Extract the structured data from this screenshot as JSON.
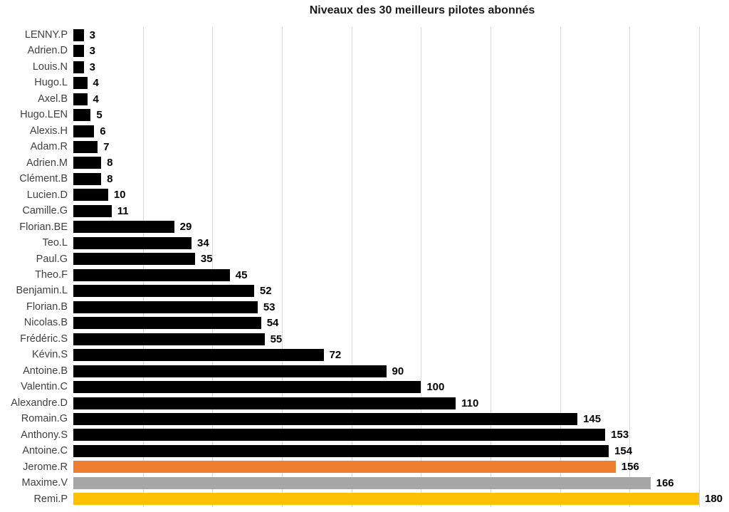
{
  "chart_data": {
    "type": "bar",
    "orientation": "horizontal",
    "title": "Niveaux des 30 meilleurs pilotes abonnés",
    "categories": [
      "LENNY.P",
      "Adrien.D",
      "Louis.N",
      "Hugo.L",
      "Axel.B",
      "Hugo.LEN",
      "Alexis.H",
      "Adam.R",
      "Adrien.M",
      "Clément.B",
      "Lucien.D",
      "Camille.G",
      "Florian.BE",
      "Teo.L",
      "Paul.G",
      "Theo.F",
      "Benjamin.L",
      "Florian.B",
      "Nicolas.B",
      "Frédéric.S",
      "Kévin.S",
      "Antoine.B",
      "Valentin.C",
      "Alexandre.D",
      "Romain.G",
      "Anthony.S",
      "Antoine.C",
      "Jerome.R",
      "Maxime.V",
      "Remi.P"
    ],
    "values": [
      3,
      3,
      3,
      4,
      4,
      5,
      6,
      7,
      8,
      8,
      10,
      11,
      29,
      34,
      35,
      45,
      52,
      53,
      54,
      55,
      72,
      90,
      100,
      110,
      145,
      153,
      154,
      156,
      166,
      180
    ],
    "bar_colors": [
      "#000000",
      "#000000",
      "#000000",
      "#000000",
      "#000000",
      "#000000",
      "#000000",
      "#000000",
      "#000000",
      "#000000",
      "#000000",
      "#000000",
      "#000000",
      "#000000",
      "#000000",
      "#000000",
      "#000000",
      "#000000",
      "#000000",
      "#000000",
      "#000000",
      "#000000",
      "#000000",
      "#000000",
      "#000000",
      "#000000",
      "#000000",
      "#ED7D31",
      "#A6A6A6",
      "#FFC000"
    ],
    "value_labels_shown": true,
    "xlabel": "",
    "ylabel": "",
    "xlim": [
      0,
      180
    ],
    "gridline_interval": 20,
    "grid": true,
    "legend": "none",
    "colors": {
      "default_bar": "#000000",
      "highlight_orange": "#ED7D31",
      "highlight_gray": "#A6A6A6",
      "highlight_gold": "#FFC000",
      "gridline": "#D9D9D9",
      "category_text": "#3F3F3F",
      "value_text": "#000000",
      "title_text": "#1A1A1A",
      "background": "#FFFFFF"
    }
  }
}
